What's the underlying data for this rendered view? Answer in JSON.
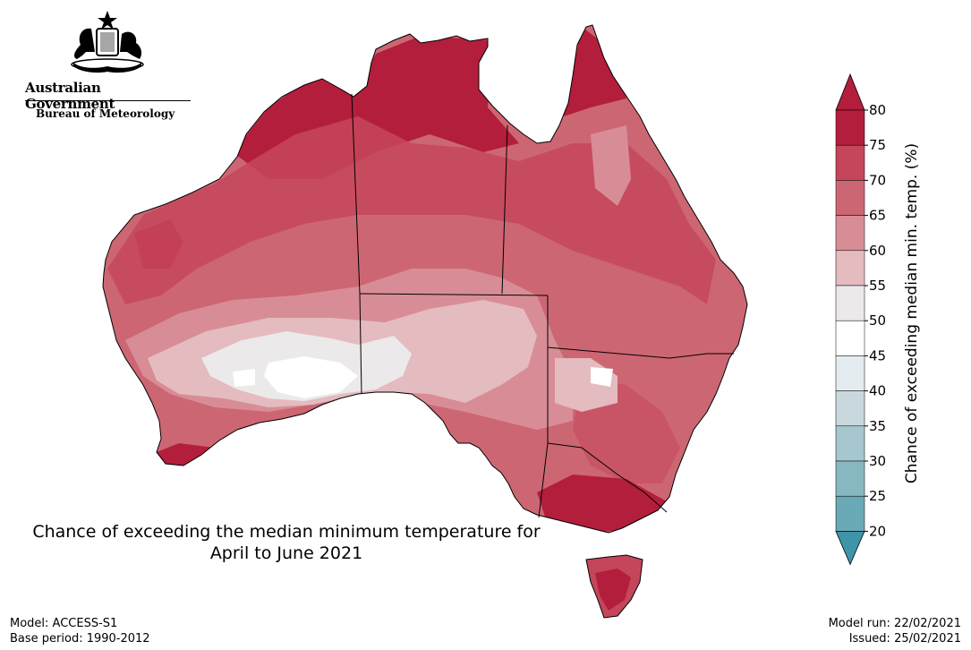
{
  "header": {
    "government": "Australian Government",
    "agency": "Bureau of Meteorology"
  },
  "map": {
    "title_line1": "Chance of exceeding the median minimum temperature for",
    "title_line2": "April to June 2021",
    "region": "Australia"
  },
  "legend": {
    "label": "Chance of exceeding median min. temp. (%)",
    "ticks": [
      "80",
      "75",
      "70",
      "65",
      "60",
      "55",
      "50",
      "45",
      "40",
      "35",
      "30",
      "25",
      "20"
    ],
    "colors": [
      "#b31e3c",
      "#c5465b",
      "#cd6673",
      "#d88d96",
      "#e4bbbf",
      "#ebe9ea",
      "#ffffff",
      "#e5ecef",
      "#c9d8dc",
      "#a6c7cd",
      "#87b8c2",
      "#6aa9b6",
      "#4b9aab"
    ],
    "extend_high_color": "#b31e3c",
    "extend_low_color": "#3f95a8"
  },
  "footer": {
    "model": "Model: ACCESS-S1",
    "base_period": "Base period: 1990-2012",
    "model_run": "Model run: 22/02/2021",
    "issued": "Issued: 25/02/2021"
  }
}
